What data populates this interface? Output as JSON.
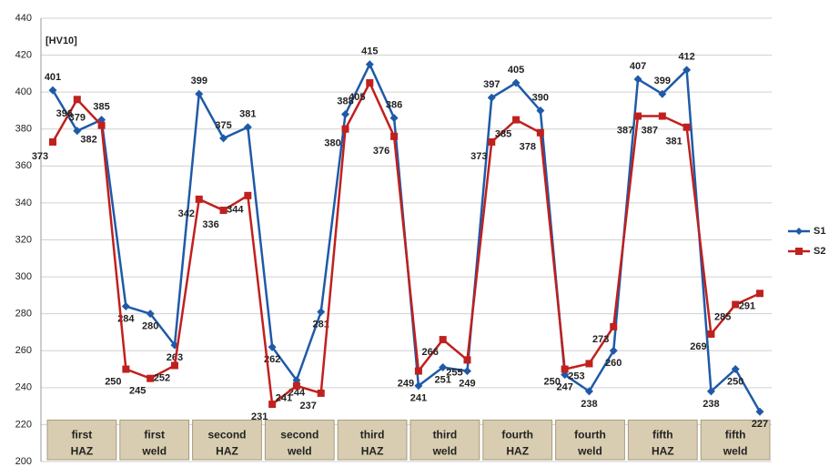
{
  "chart_data": {
    "type": "line",
    "annotation": "[HV10]",
    "groups": [
      [
        "first",
        "HAZ"
      ],
      [
        "first",
        "weld"
      ],
      [
        "second",
        "HAZ"
      ],
      [
        "second",
        "weld"
      ],
      [
        "third",
        "HAZ"
      ],
      [
        "third",
        "weld"
      ],
      [
        "fourth",
        "HAZ"
      ],
      [
        "fourth",
        "weld"
      ],
      [
        "fifth",
        "HAZ"
      ],
      [
        "fifth",
        "weld"
      ]
    ],
    "series": [
      {
        "name": "S1",
        "color": "#1f5aa8",
        "marker": "diamond",
        "values": [
          401,
          379,
          385,
          284,
          280,
          263,
          399,
          375,
          381,
          262,
          244,
          281,
          388,
          415,
          386,
          241,
          251,
          249,
          397,
          405,
          390,
          247,
          238,
          260,
          407,
          399,
          412,
          238,
          250,
          227
        ]
      },
      {
        "name": "S2",
        "color": "#c0201e",
        "marker": "square",
        "values": [
          373,
          396,
          382,
          250,
          245,
          252,
          342,
          336,
          344,
          231,
          241,
          237,
          380,
          405,
          376,
          249,
          266,
          255,
          373,
          385,
          378,
          250,
          253,
          273,
          387,
          387,
          381,
          269,
          285,
          291
        ]
      }
    ],
    "ylim": [
      200,
      440
    ],
    "yticks": [
      200,
      220,
      240,
      260,
      280,
      300,
      320,
      340,
      360,
      380,
      400,
      420,
      440
    ],
    "grid": true
  }
}
